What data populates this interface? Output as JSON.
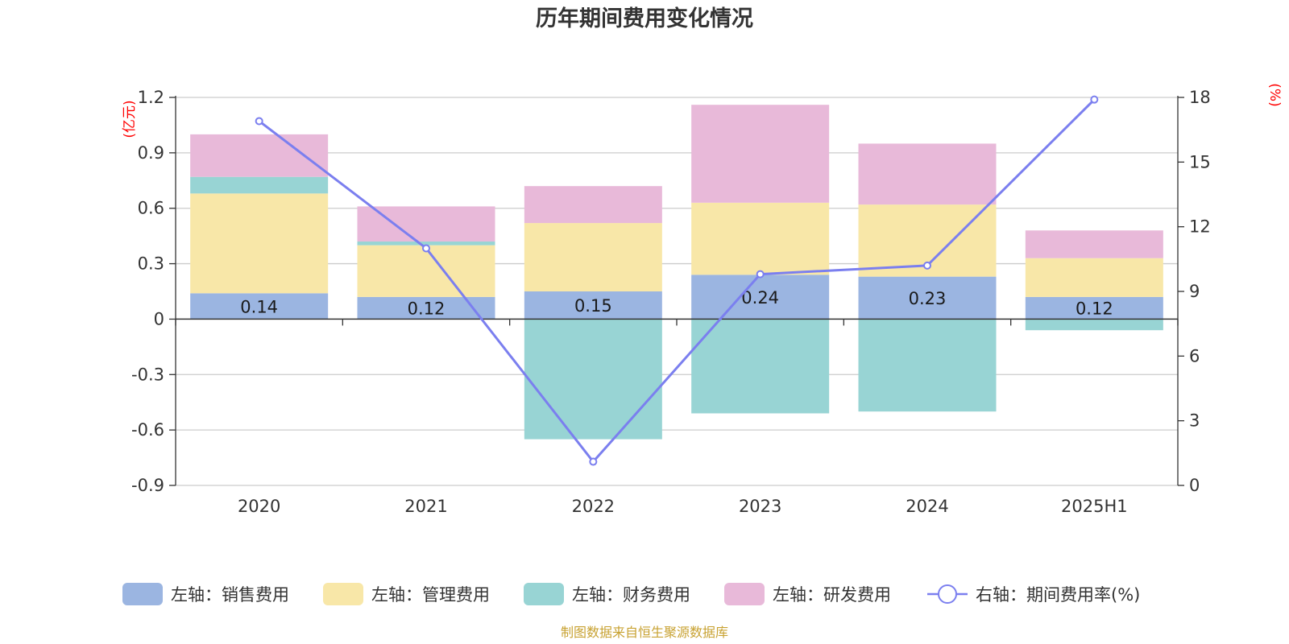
{
  "chart_data": {
    "type": "bar",
    "title": "历年期间费用变化情况",
    "source": "制图数据来自恒生聚源数据库",
    "categories": [
      "2020",
      "2021",
      "2022",
      "2023",
      "2024",
      "2025H1"
    ],
    "left_axis": {
      "unit": "(亿元)",
      "ylim": [
        -0.9,
        1.2
      ],
      "ticks": [
        "1.2",
        "0.9",
        "0.6",
        "0.3",
        "0",
        "-0.3",
        "-0.6",
        "-0.9"
      ],
      "tick_values": [
        1.2,
        0.9,
        0.6,
        0.3,
        0,
        -0.3,
        -0.6,
        -0.9
      ]
    },
    "right_axis": {
      "unit": "(%)",
      "ylim": [
        0,
        18
      ],
      "ticks": [
        "18",
        "15",
        "12",
        "9",
        "6",
        "3",
        "0"
      ],
      "tick_values": [
        18,
        15,
        12,
        9,
        6,
        3,
        0
      ]
    },
    "series": [
      {
        "name": "左轴：销售费用",
        "kind": "bar",
        "axis": "left",
        "color": "#9bb5e1",
        "values": [
          0.14,
          0.12,
          0.15,
          0.24,
          0.23,
          0.12
        ],
        "labels": [
          "0.14",
          "0.12",
          "0.15",
          "0.24",
          "0.23",
          "0.12"
        ]
      },
      {
        "name": "左轴：管理费用",
        "kind": "bar",
        "axis": "left",
        "color": "#f8e7a8",
        "values": [
          0.54,
          0.28,
          0.37,
          0.39,
          0.39,
          0.21
        ]
      },
      {
        "name": "左轴：财务费用",
        "kind": "bar",
        "axis": "left",
        "color": "#98d4d4",
        "values": [
          0.09,
          0.02,
          -0.65,
          -0.51,
          -0.5,
          -0.06
        ]
      },
      {
        "name": "左轴：研发费用",
        "kind": "bar",
        "axis": "left",
        "color": "#e8b9d9",
        "values": [
          0.23,
          0.19,
          0.2,
          0.53,
          0.33,
          0.15
        ]
      },
      {
        "name": "右轴：期间费用率(%)",
        "kind": "line",
        "axis": "right",
        "color": "#7b7fef",
        "values": [
          16.9,
          11.0,
          1.1,
          9.8,
          10.2,
          17.9
        ]
      }
    ],
    "legend_position": "bottom",
    "grid": true
  }
}
